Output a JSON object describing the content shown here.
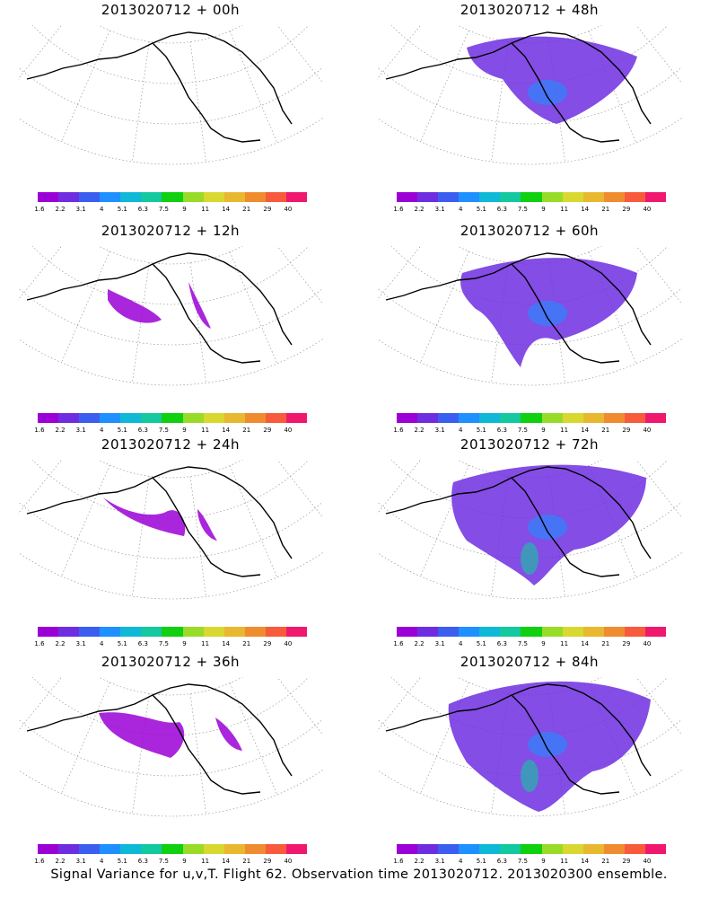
{
  "panels": [
    {
      "title": "2013020712 + 00h"
    },
    {
      "title": "2013020712 + 48h"
    },
    {
      "title": "2013020712 + 12h"
    },
    {
      "title": "2013020712 + 60h"
    },
    {
      "title": "2013020712 + 24h"
    },
    {
      "title": "2013020712 + 72h"
    },
    {
      "title": "2013020712 + 36h"
    },
    {
      "title": "2013020712 + 84h"
    }
  ],
  "colorbar": {
    "ticks": [
      "1.6",
      "2.2",
      "3.1",
      "4",
      "5.1",
      "6.3",
      "7.5",
      "9",
      "11",
      "14",
      "21",
      "29",
      "40"
    ],
    "colors": [
      "#9b00d6",
      "#6e2ee0",
      "#3b5ef0",
      "#1e90ff",
      "#10b8d8",
      "#14c8a0",
      "#10d010",
      "#98dc28",
      "#d8d830",
      "#e8b830",
      "#f08c30",
      "#f85a3c",
      "#f0186e"
    ]
  },
  "footer": "Signal Variance for u,v,T. Flight 62. Observation time 2013020712. 2013020300 ensemble."
}
